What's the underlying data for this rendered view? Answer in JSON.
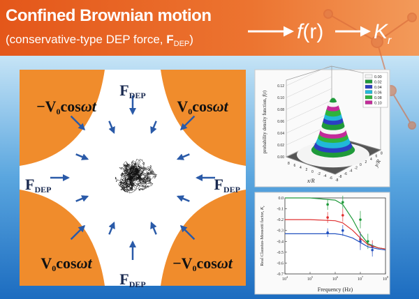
{
  "header": {
    "title": "Confined Brownian motion",
    "subtitle": {
      "text": "(conservative-type DEP force, ",
      "bold": "F",
      "sub": "DEP",
      "close": ")"
    },
    "function": {
      "f": "f",
      "arg": "(r)"
    },
    "factor": {
      "main": "K",
      "sub": "r"
    }
  },
  "diagram": {
    "electrodes": [
      {
        "sign": "−V",
        "sub": "0",
        "cos": "cos",
        "wt": "ωt"
      },
      {
        "sign": "V",
        "sub": "0",
        "cos": "cos",
        "wt": "ωt"
      },
      {
        "sign": "V",
        "sub": "0",
        "cos": "cos",
        "wt": "ωt"
      },
      {
        "sign": "−V",
        "sub": "0",
        "cos": "cos",
        "wt": "ωt"
      }
    ],
    "forces": [
      {
        "main": "F",
        "sub": "DEP"
      },
      {
        "main": "F",
        "sub": "DEP"
      },
      {
        "main": "F",
        "sub": "DEP"
      },
      {
        "main": "F",
        "sub": "DEP"
      }
    ]
  },
  "surface_plot": {
    "zlabel": {
      "text": "probability density function, ",
      "var": "f",
      "arg": "(r)"
    },
    "zticks": [
      "0.00",
      "0.02",
      "0.04",
      "0.06",
      "0.08",
      "0.10",
      "0.12"
    ],
    "xlabel": "x/R",
    "ylabel": "y/R",
    "xticks": [
      "8",
      "6",
      "4",
      "2",
      "0",
      "-2",
      "-4",
      "-6",
      "-8"
    ],
    "yticks": [
      "-8",
      "-6",
      "-4",
      "-2",
      "0",
      "2",
      "4",
      "6",
      "8"
    ],
    "legend": [
      {
        "label": "0.00",
        "color": "#f4f4f4"
      },
      {
        "label": "0.02",
        "color": "#1f9a3a"
      },
      {
        "label": "0.04",
        "color": "#2b3fc2"
      },
      {
        "label": "0.06",
        "color": "#21b8d8"
      },
      {
        "label": "0.08",
        "color": "#2fb33c"
      },
      {
        "label": "0.10",
        "color": "#c42a9a"
      }
    ]
  },
  "cm_plot": {
    "ylabel": {
      "text": "Real Clausius-Mossotti factor, ",
      "main": "K",
      "sub": "r"
    },
    "xlabel": "Frequency (Hz)",
    "ylim": [
      -0.7,
      0.0
    ],
    "yticks": [
      {
        "value": 0,
        "label": "0.0"
      },
      {
        "value": -0.1,
        "label": "-0.1"
      },
      {
        "value": -0.2,
        "label": "-0.2"
      },
      {
        "value": -0.3,
        "label": "-0.3"
      },
      {
        "value": -0.4,
        "label": "-0.4"
      },
      {
        "value": -0.5,
        "label": "-0.5"
      },
      {
        "value": -0.6,
        "label": "-0.6"
      },
      {
        "value": -0.7,
        "label": "-0.7"
      }
    ],
    "xlim": [
      10000,
      100000000
    ],
    "xticks": [
      {
        "value": 10000,
        "base": "10",
        "exp": "4"
      },
      {
        "value": 100000,
        "base": "10",
        "exp": "5"
      },
      {
        "value": 1000000,
        "base": "10",
        "exp": "6"
      },
      {
        "value": 10000000,
        "base": "10",
        "exp": "7"
      },
      {
        "value": 100000000,
        "base": "10",
        "exp": "8"
      }
    ],
    "fit_x": [
      10000,
      100000,
      1000000,
      2000000,
      5000000,
      10000000,
      20000000,
      50000000,
      100000000
    ],
    "series": [
      {
        "color": "#1f9a3a",
        "x": [
          500000,
          2000000,
          10000000,
          20000000
        ],
        "values": [
          -0.06,
          -0.04,
          -0.2,
          -0.4
        ],
        "errors": [
          0.05,
          0.06,
          0.08,
          0.07
        ],
        "fit": [
          0,
          0,
          -0.02,
          -0.06,
          -0.2,
          -0.33,
          -0.42,
          -0.46,
          -0.47
        ]
      },
      {
        "color": "#e03030",
        "x": [
          500000,
          2000000,
          10000000,
          30000000
        ],
        "values": [
          -0.18,
          -0.16,
          -0.38,
          -0.45
        ],
        "errors": [
          0.05,
          0.06,
          0.07,
          0.06
        ],
        "fit": [
          -0.2,
          -0.2,
          -0.21,
          -0.23,
          -0.3,
          -0.37,
          -0.43,
          -0.46,
          -0.47
        ]
      },
      {
        "color": "#2050c0",
        "x": [
          500000,
          2000000,
          10000000,
          30000000
        ],
        "values": [
          -0.32,
          -0.3,
          -0.4,
          -0.48
        ],
        "errors": [
          0.04,
          0.05,
          0.08,
          0.06
        ],
        "fit": [
          -0.33,
          -0.33,
          -0.33,
          -0.34,
          -0.37,
          -0.41,
          -0.45,
          -0.47,
          -0.48
        ]
      }
    ]
  }
}
